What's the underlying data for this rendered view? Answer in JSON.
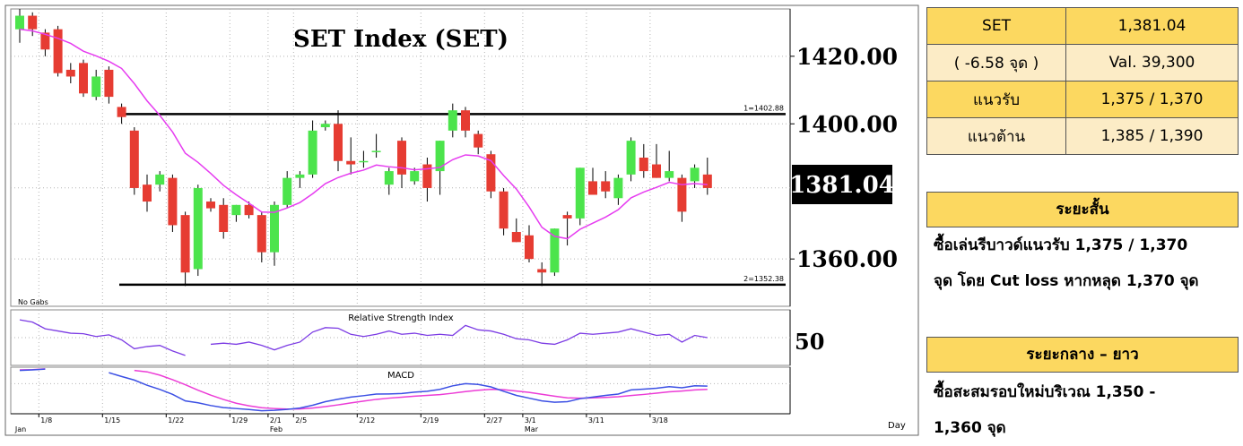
{
  "chart_data": {
    "type": "candlestick",
    "title": "SET Index (SET)",
    "last_price_label": "1381.04",
    "y_ticks": [
      1420,
      1400,
      1360
    ],
    "y_tick_labels": [
      "1420.00",
      "1400.00",
      "1360.00"
    ],
    "ylim": [
      1346,
      1434
    ],
    "support_resistance": [
      {
        "label": "1=1402.88",
        "value": 1402.88
      },
      {
        "label": "2=1352.38",
        "value": 1352.38
      }
    ],
    "corner_note": "No Gabs",
    "x_axis_label": "Day",
    "date_labels": [
      {
        "i": 2,
        "text": "1/8"
      },
      {
        "i": 7,
        "text": "1/15"
      },
      {
        "i": 12,
        "text": "1/22"
      },
      {
        "i": 17,
        "text": "1/29"
      },
      {
        "i": 20,
        "text": "2/1"
      },
      {
        "i": 22,
        "text": "2/5"
      },
      {
        "i": 27,
        "text": "2/12"
      },
      {
        "i": 32,
        "text": "2/19"
      },
      {
        "i": 37,
        "text": "2/27"
      },
      {
        "i": 40,
        "text": "3/1"
      },
      {
        "i": 45,
        "text": "3/11"
      },
      {
        "i": 50,
        "text": "3/18"
      }
    ],
    "month_labels": [
      {
        "i": 0,
        "text": "Jan"
      },
      {
        "i": 20,
        "text": "Feb"
      },
      {
        "i": 40,
        "text": "Mar"
      }
    ],
    "candles": [
      {
        "o": 1428.0,
        "h": 1434.0,
        "l": 1424.0,
        "c": 1432.0
      },
      {
        "o": 1432.0,
        "h": 1433.0,
        "l": 1426.0,
        "c": 1428.0
      },
      {
        "o": 1427.0,
        "h": 1428.0,
        "l": 1420.0,
        "c": 1422.0
      },
      {
        "o": 1428.0,
        "h": 1429.0,
        "l": 1414.0,
        "c": 1415.0
      },
      {
        "o": 1416.0,
        "h": 1418.0,
        "l": 1412.0,
        "c": 1414.0
      },
      {
        "o": 1418.0,
        "h": 1419.0,
        "l": 1408.0,
        "c": 1409.0
      },
      {
        "o": 1408.0,
        "h": 1416.0,
        "l": 1407.0,
        "c": 1414.0
      },
      {
        "o": 1416.0,
        "h": 1417.0,
        "l": 1406.0,
        "c": 1408.0
      },
      {
        "o": 1405.0,
        "h": 1406.0,
        "l": 1400.0,
        "c": 1402.0
      },
      {
        "o": 1398.0,
        "h": 1399.0,
        "l": 1379.0,
        "c": 1381.0
      },
      {
        "o": 1382.0,
        "h": 1385.0,
        "l": 1374.0,
        "c": 1377.0
      },
      {
        "o": 1382.0,
        "h": 1386.0,
        "l": 1380.0,
        "c": 1385.0
      },
      {
        "o": 1384.0,
        "h": 1385.0,
        "l": 1368.0,
        "c": 1370.0
      },
      {
        "o": 1373.0,
        "h": 1374.0,
        "l": 1352.0,
        "c": 1356.0
      },
      {
        "o": 1357.0,
        "h": 1382.0,
        "l": 1355.0,
        "c": 1381.0
      },
      {
        "o": 1377.0,
        "h": 1378.0,
        "l": 1374.0,
        "c": 1375.0
      },
      {
        "o": 1376.0,
        "h": 1378.0,
        "l": 1366.0,
        "c": 1368.0
      },
      {
        "o": 1373.0,
        "h": 1376.0,
        "l": 1371.0,
        "c": 1376.0
      },
      {
        "o": 1376.0,
        "h": 1377.0,
        "l": 1372.0,
        "c": 1373.0
      },
      {
        "o": 1373.0,
        "h": 1374.0,
        "l": 1359.0,
        "c": 1362.0
      },
      {
        "o": 1362.0,
        "h": 1377.0,
        "l": 1358.0,
        "c": 1376.0
      },
      {
        "o": 1376.0,
        "h": 1386.0,
        "l": 1375.0,
        "c": 1384.0
      },
      {
        "o": 1384.0,
        "h": 1386.0,
        "l": 1381.0,
        "c": 1385.0
      },
      {
        "o": 1385.0,
        "h": 1401.0,
        "l": 1384.0,
        "c": 1398.0
      },
      {
        "o": 1399.0,
        "h": 1401.0,
        "l": 1398.0,
        "c": 1400.0
      },
      {
        "o": 1400.0,
        "h": 1404.0,
        "l": 1386.0,
        "c": 1389.0
      },
      {
        "o": 1389.0,
        "h": 1396.0,
        "l": 1385.0,
        "c": 1388.0
      },
      {
        "o": 1389.0,
        "h": 1392.0,
        "l": 1387.0,
        "c": 1389.0
      },
      {
        "o": 1392.0,
        "h": 1397.0,
        "l": 1390.0,
        "c": 1392.0
      },
      {
        "o": 1382.0,
        "h": 1387.0,
        "l": 1379.0,
        "c": 1386.0
      },
      {
        "o": 1395.0,
        "h": 1396.0,
        "l": 1381.0,
        "c": 1385.0
      },
      {
        "o": 1383.0,
        "h": 1387.0,
        "l": 1382.0,
        "c": 1386.0
      },
      {
        "o": 1388.0,
        "h": 1390.0,
        "l": 1377.0,
        "c": 1381.0
      },
      {
        "o": 1386.0,
        "h": 1395.0,
        "l": 1379.0,
        "c": 1395.0
      },
      {
        "o": 1398.0,
        "h": 1406.0,
        "l": 1396.0,
        "c": 1404.0
      },
      {
        "o": 1404.0,
        "h": 1405.0,
        "l": 1396.0,
        "c": 1398.0
      },
      {
        "o": 1397.0,
        "h": 1398.0,
        "l": 1391.0,
        "c": 1393.0
      },
      {
        "o": 1391.0,
        "h": 1392.0,
        "l": 1378.0,
        "c": 1380.0
      },
      {
        "o": 1380.0,
        "h": 1381.0,
        "l": 1367.0,
        "c": 1369.0
      },
      {
        "o": 1368.0,
        "h": 1372.0,
        "l": 1365.0,
        "c": 1365.0
      },
      {
        "o": 1367.0,
        "h": 1370.0,
        "l": 1359.0,
        "c": 1360.0
      },
      {
        "o": 1357.0,
        "h": 1359.0,
        "l": 1352.0,
        "c": 1356.0
      },
      {
        "o": 1356.0,
        "h": 1369.0,
        "l": 1355.0,
        "c": 1369.0
      },
      {
        "o": 1373.0,
        "h": 1374.0,
        "l": 1364.0,
        "c": 1372.0
      },
      {
        "o": 1372.0,
        "h": 1387.0,
        "l": 1370.0,
        "c": 1387.0
      },
      {
        "o": 1383.0,
        "h": 1387.0,
        "l": 1379.0,
        "c": 1379.0
      },
      {
        "o": 1383.0,
        "h": 1386.0,
        "l": 1378.0,
        "c": 1380.0
      },
      {
        "o": 1378.0,
        "h": 1385.0,
        "l": 1376.0,
        "c": 1384.0
      },
      {
        "o": 1385.0,
        "h": 1396.0,
        "l": 1383.0,
        "c": 1395.0
      },
      {
        "o": 1390.0,
        "h": 1394.0,
        "l": 1384.0,
        "c": 1386.0
      },
      {
        "o": 1388.0,
        "h": 1394.0,
        "l": 1384.0,
        "c": 1384.0
      },
      {
        "o": 1384.0,
        "h": 1392.0,
        "l": 1383.0,
        "c": 1386.0
      },
      {
        "o": 1384.0,
        "h": 1385.0,
        "l": 1371.0,
        "c": 1374.0
      },
      {
        "o": 1383.0,
        "h": 1388.0,
        "l": 1381.0,
        "c": 1387.0
      },
      {
        "o": 1385.0,
        "h": 1390.0,
        "l": 1379.0,
        "c": 1381.0
      }
    ],
    "ma": [
      1428,
      1427.5,
      1426.5,
      1425.3,
      1423.8,
      1421.5,
      1420.1,
      1418.5,
      1416.4,
      1411.9,
      1406.8,
      1402.5,
      1397.6,
      1391.3,
      1388.6,
      1385.3,
      1381.8,
      1379.0,
      1376.5,
      1373.9,
      1373.8,
      1375.1,
      1376.7,
      1379.3,
      1382.3,
      1384.1,
      1385.4,
      1386.3,
      1387.8,
      1387.3,
      1387.0,
      1386.4,
      1386.7,
      1387.1,
      1389.4,
      1390.8,
      1390.5,
      1389.1,
      1384.7,
      1380.7,
      1375.4,
      1369.4,
      1366.7,
      1366.0,
      1368.8,
      1370.6,
      1372.4,
      1374.6,
      1378.1,
      1379.8,
      1381.2,
      1382.7,
      1382.0,
      1382.3,
      1382.0
    ],
    "rsi": {
      "title": "Relative Strength Index",
      "level_label": "50",
      "values": [
        82,
        78,
        66,
        62,
        58,
        57,
        52,
        55,
        46,
        30,
        34,
        36,
        26,
        18,
        null,
        38,
        40,
        38,
        42,
        36,
        28,
        36,
        42,
        60,
        68,
        67,
        56,
        52,
        56,
        62,
        56,
        58,
        54,
        56,
        54,
        72,
        64,
        62,
        56,
        48,
        46,
        40,
        38,
        46,
        58,
        56,
        58,
        60,
        66,
        60,
        54,
        56,
        42,
        54,
        50
      ]
    },
    "macd": {
      "title": "MACD",
      "macd": [
        9.6,
        10.0,
        10.6,
        null,
        null,
        null,
        null,
        8.0,
        5.2,
        2.6,
        -1.2,
        -4.2,
        -7.8,
        -12.6,
        -14.0,
        -16.0,
        -17.5,
        -18.2,
        -18.9,
        -19.8,
        -19.5,
        -18.8,
        -17.8,
        -15.8,
        -13.2,
        -11.4,
        -9.8,
        -8.8,
        -7.6,
        -7.5,
        -7.2,
        -6.2,
        -5.6,
        -4.2,
        -1.6,
        0.0,
        -0.6,
        -2.4,
        -5.6,
        -8.6,
        -10.6,
        -12.6,
        -13.6,
        -13.2,
        -11.0,
        -9.8,
        -8.6,
        -7.6,
        -4.6,
        -4.0,
        -3.4,
        -2.2,
        -3.0,
        -1.6,
        -1.8
      ],
      "signal": [
        10.0,
        10.2,
        10.8,
        null,
        null,
        null,
        null,
        null,
        null,
        9.6,
        8.6,
        6.2,
        2.9,
        -0.8,
        -4.8,
        -8.4,
        -11.6,
        -14.3,
        -16.2,
        -17.6,
        -18.2,
        -18.6,
        -18.5,
        -17.8,
        -16.8,
        -15.5,
        -14.1,
        -12.8,
        -11.5,
        -10.6,
        -9.9,
        -9.2,
        -8.6,
        -8.0,
        -7.0,
        -5.8,
        -4.8,
        -4.2,
        -4.4,
        -5.4,
        -6.4,
        -7.8,
        -9.2,
        -10.4,
        -10.6,
        -10.4,
        -10.1,
        -9.6,
        -8.7,
        -7.9,
        -7.0,
        -6.0,
        -5.4,
        -4.6,
        -4.2
      ]
    }
  },
  "colors": {
    "up": "#4ce44c",
    "down": "#e63c32",
    "ma": "#e63cf0",
    "rsi": "#7c3ce4",
    "macd": "#3c50e4",
    "signal": "#ec3cd6"
  },
  "quote_table": {
    "rows": [
      [
        "SET",
        "1,381.04"
      ],
      [
        "( -6.58 จุด )",
        "Val.  39,300"
      ],
      [
        "แนวรับ",
        "1,375 / 1,370"
      ],
      [
        "แนวต้าน",
        "1,385 / 1,390"
      ]
    ]
  },
  "short_term": {
    "heading": "ระยะสั้น",
    "line1": "ซื้อเล่นรีบาวด์แนวรับ 1,375 / 1,370",
    "line2": "จุด โดย Cut loss หากหลุด 1,370 จุด"
  },
  "long_term": {
    "heading": "ระยะกลาง – ยาว",
    "line1": "ซื้อสะสมรอบใหม่บริเวณ 1,350 -",
    "line2": "1,360 จุด"
  }
}
